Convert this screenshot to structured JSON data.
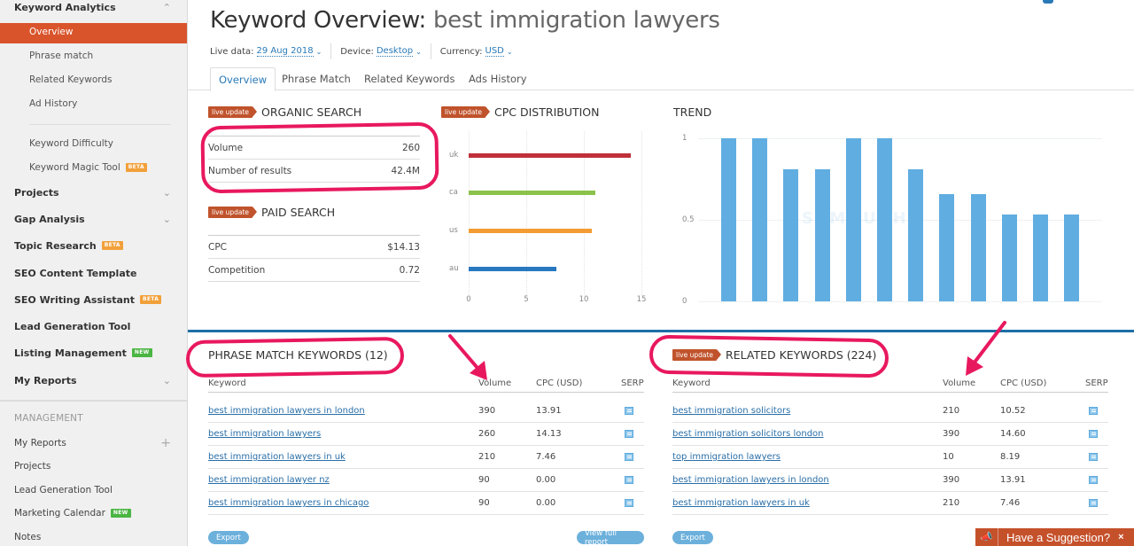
{
  "sidebar": {
    "keyword_analytics": {
      "label": "Keyword Analytics",
      "items": [
        {
          "label": "Overview",
          "active": true
        },
        {
          "label": "Phrase match"
        },
        {
          "label": "Related Keywords"
        },
        {
          "label": "Ad History"
        },
        {
          "label": "Keyword Difficulty"
        },
        {
          "label": "Keyword Magic Tool",
          "badge": "BETA"
        }
      ]
    },
    "groups": [
      {
        "label": "Projects",
        "chevron": true
      },
      {
        "label": "Gap Analysis",
        "chevron": true
      },
      {
        "label": "Topic Research",
        "badge": "BETA"
      },
      {
        "label": "SEO Content Template"
      },
      {
        "label": "SEO Writing Assistant",
        "badge": "BETA"
      },
      {
        "label": "Lead Generation Tool"
      },
      {
        "label": "Listing Management",
        "badge": "NEW"
      },
      {
        "label": "My Reports",
        "chevron": true
      }
    ],
    "management": {
      "title": "MANAGEMENT",
      "items": [
        {
          "label": "My Reports",
          "plus": true
        },
        {
          "label": "Projects"
        },
        {
          "label": "Lead Generation Tool"
        },
        {
          "label": "Marketing Calendar",
          "badge": "NEW"
        },
        {
          "label": "Notes"
        }
      ]
    }
  },
  "header": {
    "title_prefix": "Keyword Overview:",
    "keyword": "best immigration lawyers",
    "live_data_label": "Live data:",
    "live_data_value": "29 Aug 2018",
    "device_label": "Device:",
    "device_value": "Desktop",
    "currency_label": "Currency:",
    "currency_value": "USD"
  },
  "tabs": [
    {
      "label": "Overview",
      "active": true
    },
    {
      "label": "Phrase Match"
    },
    {
      "label": "Related Keywords"
    },
    {
      "label": "Ads History"
    }
  ],
  "live_badge": "live update",
  "organic": {
    "title": "ORGANIC SEARCH",
    "rows": [
      {
        "label": "Volume",
        "value": "260"
      },
      {
        "label": "Number of results",
        "value": "42.4M"
      }
    ]
  },
  "paid": {
    "title": "PAID SEARCH",
    "rows": [
      {
        "label": "CPC",
        "value": "$14.13"
      },
      {
        "label": "Competition",
        "value": "0.72"
      }
    ]
  },
  "chart_data": [
    {
      "type": "bar",
      "orientation": "horizontal",
      "title": "CPC DISTRIBUTION",
      "categories": [
        "uk",
        "ca",
        "us",
        "au"
      ],
      "values": [
        14.1,
        11.0,
        10.7,
        7.6
      ],
      "colors": [
        "#c0303a",
        "#8bc34a",
        "#f39c34",
        "#2878c0"
      ],
      "xticks": [
        "0",
        "5",
        "10",
        "15"
      ],
      "xlim": [
        0,
        15
      ],
      "grid": true
    },
    {
      "type": "bar",
      "title": "TREND",
      "categories": [
        "1",
        "2",
        "3",
        "4",
        "5",
        "6",
        "7",
        "8",
        "9",
        "10",
        "11",
        "12"
      ],
      "values": [
        1.0,
        1.0,
        0.81,
        0.81,
        1.0,
        1.0,
        0.81,
        0.66,
        0.66,
        0.53,
        0.53,
        0.53
      ],
      "yticks": [
        "0",
        "0.5",
        "1"
      ],
      "ylim": [
        0,
        1
      ],
      "color": "#60ade1",
      "grid": true
    }
  ],
  "phrase_match": {
    "title": "PHRASE MATCH KEYWORDS (12)",
    "columns": [
      "Keyword",
      "Volume",
      "CPC (USD)",
      "SERP"
    ],
    "rows": [
      {
        "keyword": "best immigration lawyers in london",
        "volume": "390",
        "cpc": "13.91"
      },
      {
        "keyword": "best immigration lawyers",
        "volume": "260",
        "cpc": "14.13"
      },
      {
        "keyword": "best immigration lawyers in uk",
        "volume": "210",
        "cpc": "7.46"
      },
      {
        "keyword": "best immigration lawyer nz",
        "volume": "90",
        "cpc": "0.00"
      },
      {
        "keyword": "best immigration lawyers in chicago",
        "volume": "90",
        "cpc": "0.00"
      }
    ],
    "export_label": "Export",
    "full_report_label": "View full report"
  },
  "related": {
    "title": "RELATED KEYWORDS (224)",
    "columns": [
      "Keyword",
      "Volume",
      "CPC (USD)",
      "SERP"
    ],
    "rows": [
      {
        "keyword": "best immigration solicitors",
        "volume": "210",
        "cpc": "10.52"
      },
      {
        "keyword": "best immigration solicitors london",
        "volume": "390",
        "cpc": "14.60"
      },
      {
        "keyword": "top immigration lawyers",
        "volume": "10",
        "cpc": "8.19"
      },
      {
        "keyword": "best immigration lawyers in london",
        "volume": "390",
        "cpc": "13.91"
      },
      {
        "keyword": "best immigration lawyers in uk",
        "volume": "210",
        "cpc": "7.46"
      }
    ],
    "export_label": "Export"
  },
  "suggestion": {
    "label": "Have a Suggestion?",
    "close": "×",
    "icon": "megaphone-icon"
  },
  "colors": {
    "accent": "#d9542b",
    "link": "#2a6fa8",
    "annotation": "#e8185f",
    "divider": "#1e6ea5"
  }
}
